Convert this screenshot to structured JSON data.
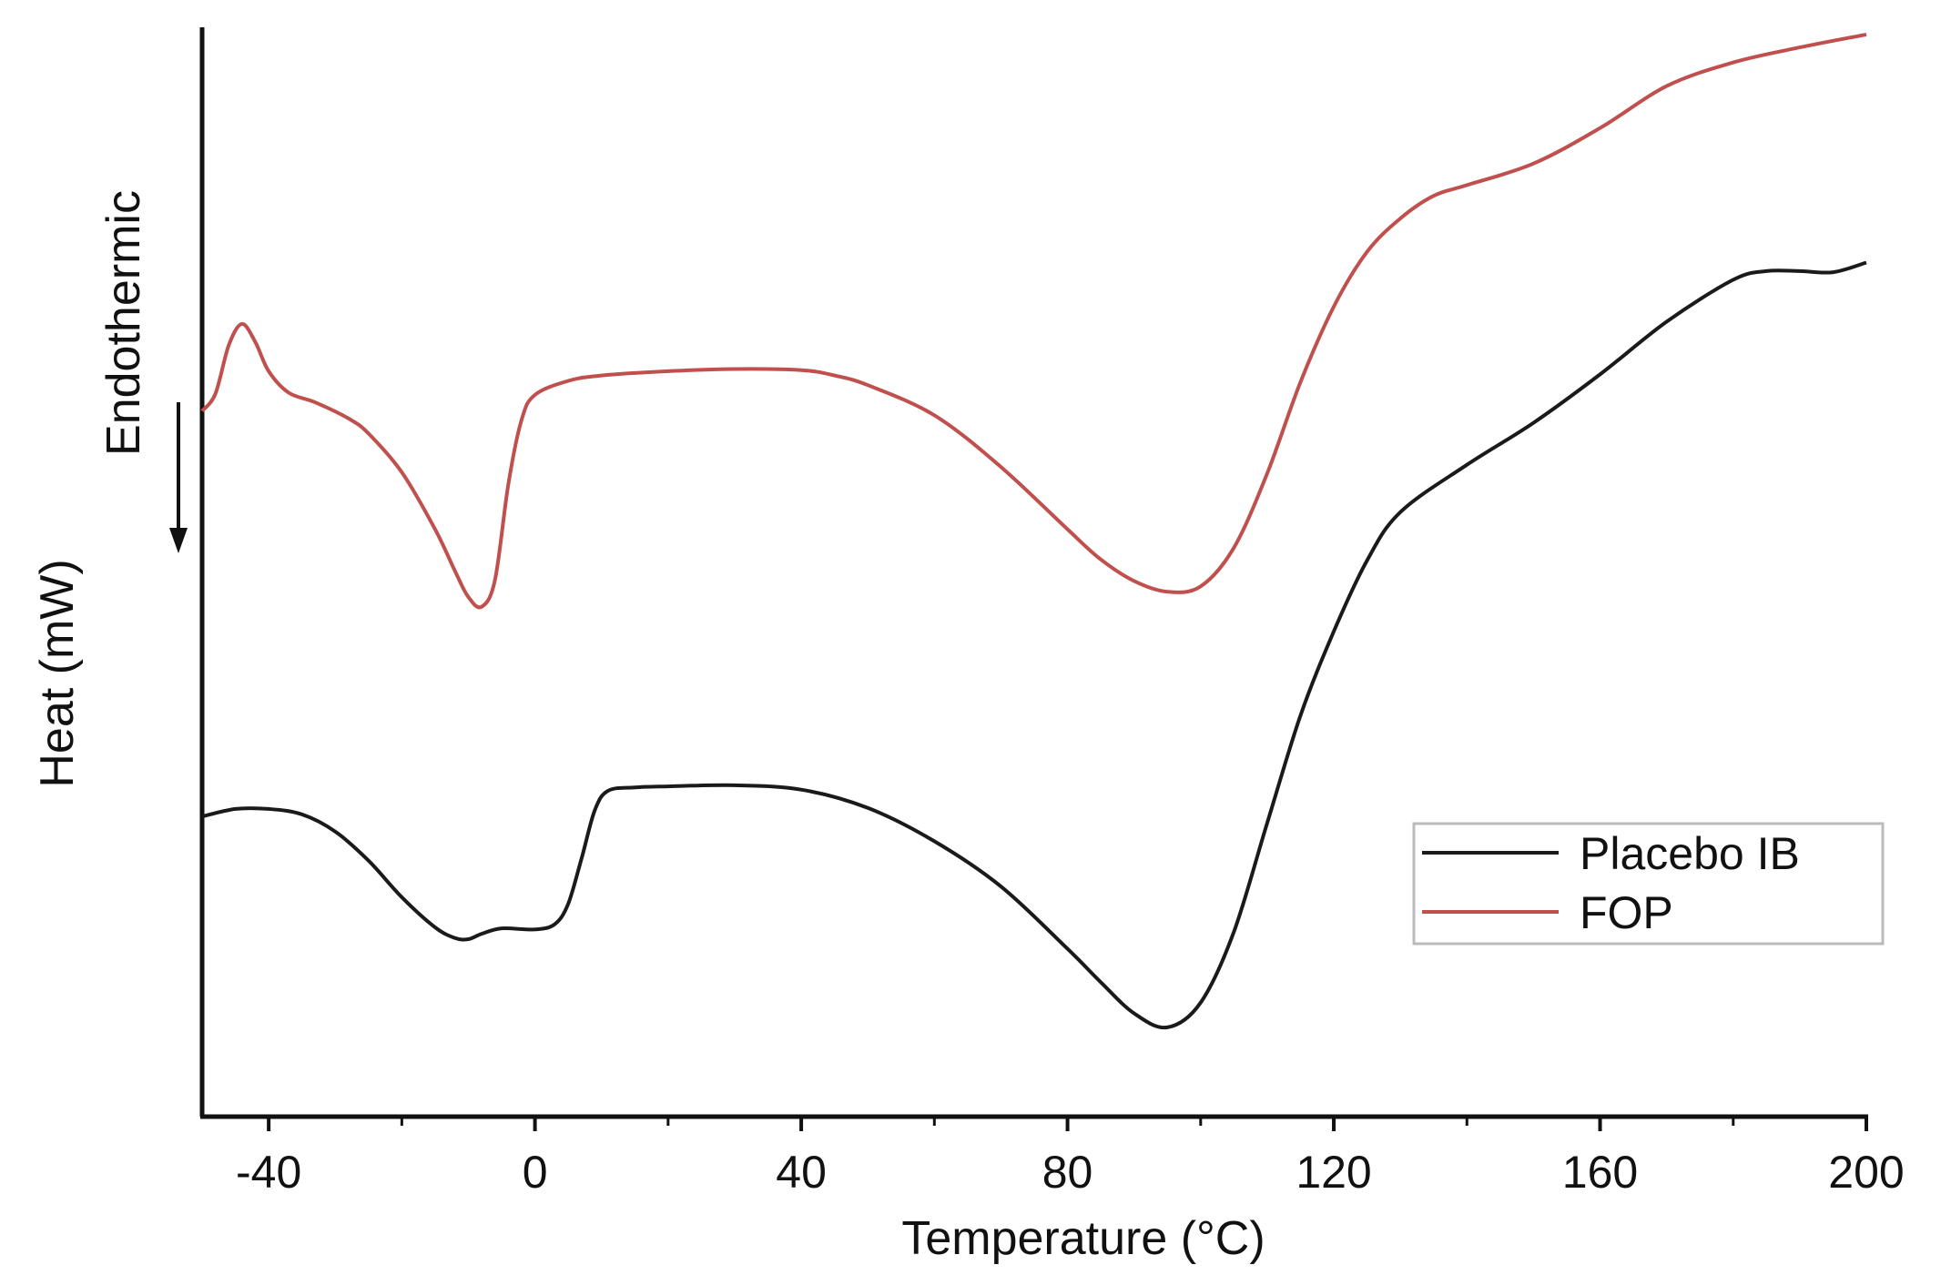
{
  "chart_data": {
    "type": "line",
    "title": "",
    "xlabel": "Temperature (°C)",
    "ylabel": "Heat (mW)",
    "direction_annotation": "Endothermic",
    "xlim": [
      -50,
      200
    ],
    "ylim": [
      0,
      100
    ],
    "x_ticks": [
      -40,
      0,
      40,
      80,
      120,
      160,
      200
    ],
    "x_tick_labels": [
      "-40",
      "0",
      "40",
      "80",
      "120",
      "160",
      "200"
    ],
    "y_ticks_shown": false,
    "legend_position": "lower-right",
    "series": [
      {
        "name": "Placebo IB",
        "color": "#1a1a1a",
        "points": [
          [
            -50,
            27.9
          ],
          [
            -45,
            28.6
          ],
          [
            -40,
            28.6
          ],
          [
            -35,
            28.1
          ],
          [
            -30,
            26.5
          ],
          [
            -25,
            23.8
          ],
          [
            -20,
            20.4
          ],
          [
            -15,
            17.6
          ],
          [
            -12,
            16.6
          ],
          [
            -10,
            16.5
          ],
          [
            -8,
            17.0
          ],
          [
            -5,
            17.5
          ],
          [
            0,
            17.4
          ],
          [
            3,
            17.9
          ],
          [
            5,
            19.8
          ],
          [
            7,
            24.0
          ],
          [
            9,
            28.5
          ],
          [
            11,
            30.3
          ],
          [
            15,
            30.6
          ],
          [
            20,
            30.7
          ],
          [
            30,
            30.8
          ],
          [
            40,
            30.4
          ],
          [
            50,
            28.7
          ],
          [
            60,
            25.6
          ],
          [
            70,
            21.4
          ],
          [
            80,
            15.6
          ],
          [
            85,
            12.5
          ],
          [
            90,
            9.6
          ],
          [
            95,
            8.3
          ],
          [
            100,
            10.6
          ],
          [
            105,
            17.2
          ],
          [
            110,
            27.3
          ],
          [
            115,
            37.3
          ],
          [
            120,
            45.1
          ],
          [
            125,
            51.7
          ],
          [
            130,
            56.2
          ],
          [
            140,
            60.6
          ],
          [
            150,
            64.5
          ],
          [
            160,
            69.0
          ],
          [
            170,
            73.9
          ],
          [
            180,
            77.8
          ],
          [
            185,
            78.6
          ],
          [
            190,
            78.6
          ],
          [
            195,
            78.5
          ],
          [
            200,
            79.4
          ]
        ]
      },
      {
        "name": "FOP",
        "color": "#c0504d",
        "points": [
          [
            -50,
            65.6
          ],
          [
            -48,
            67.2
          ],
          [
            -46,
            71.7
          ],
          [
            -44,
            73.7
          ],
          [
            -42,
            72.0
          ],
          [
            -40,
            69.3
          ],
          [
            -37,
            67.3
          ],
          [
            -33,
            66.4
          ],
          [
            -28,
            64.9
          ],
          [
            -25,
            63.5
          ],
          [
            -20,
            59.9
          ],
          [
            -15,
            54.6
          ],
          [
            -12,
            50.7
          ],
          [
            -10,
            48.3
          ],
          [
            -8,
            47.4
          ],
          [
            -6,
            49.9
          ],
          [
            -4,
            58.8
          ],
          [
            -2,
            64.8
          ],
          [
            0,
            67.1
          ],
          [
            5,
            68.4
          ],
          [
            10,
            68.9
          ],
          [
            20,
            69.3
          ],
          [
            30,
            69.5
          ],
          [
            40,
            69.4
          ],
          [
            45,
            68.9
          ],
          [
            50,
            68.0
          ],
          [
            60,
            65.2
          ],
          [
            70,
            60.4
          ],
          [
            80,
            54.6
          ],
          [
            85,
            51.8
          ],
          [
            90,
            49.8
          ],
          [
            95,
            48.8
          ],
          [
            100,
            49.3
          ],
          [
            105,
            52.9
          ],
          [
            110,
            59.8
          ],
          [
            115,
            68.3
          ],
          [
            120,
            75.3
          ],
          [
            125,
            80.4
          ],
          [
            130,
            83.5
          ],
          [
            135,
            85.6
          ],
          [
            140,
            86.6
          ],
          [
            150,
            88.6
          ],
          [
            160,
            91.9
          ],
          [
            170,
            95.8
          ],
          [
            180,
            98.0
          ],
          [
            190,
            99.4
          ],
          [
            200,
            100.6
          ]
        ]
      }
    ]
  }
}
